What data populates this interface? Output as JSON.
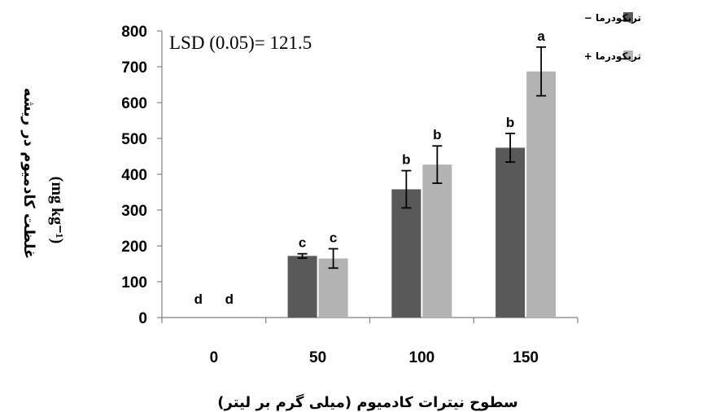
{
  "chart_data": {
    "type": "bar",
    "categories": [
      "0",
      "50",
      "100",
      "150"
    ],
    "series": [
      {
        "name": "تریکودرما −",
        "color": "#595959",
        "values": [
          0,
          172,
          358,
          474
        ],
        "errors": [
          0,
          6,
          52,
          40
        ],
        "letters": [
          "d",
          "c",
          "b",
          "b"
        ]
      },
      {
        "name": "تریکودرما +",
        "color": "#b3b3b3",
        "values": [
          0,
          165,
          427,
          687
        ],
        "errors": [
          0,
          27,
          52,
          68
        ],
        "letters": [
          "d",
          "c",
          "b",
          "a"
        ]
      }
    ],
    "ylim": [
      0,
      800
    ],
    "yticks": [
      "0",
      "100",
      "200",
      "300",
      "400",
      "500",
      "600",
      "700",
      "800"
    ],
    "xlabel": "سطوح نیترات کادمیوم (میلی گرم بر لیتر)",
    "ylabel": "غلظت کادمیوم در ریشه",
    "yunit": "(mg kg⁻¹)",
    "annotation": "LSD (0.05)= 121.5",
    "grid": false,
    "legend_position": "top-right"
  }
}
